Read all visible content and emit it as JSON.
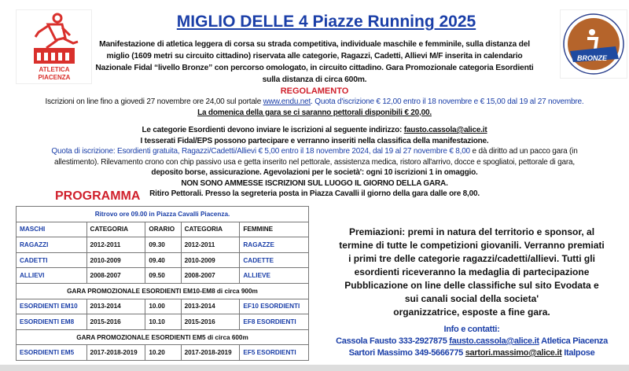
{
  "title": "MIGLIO DELLE 4 Piazze Running 2025",
  "logos": {
    "left_text": "ATLETICA PIACENZA",
    "right_text": "BRONZE"
  },
  "intro": [
    "Manifestazione di atletica leggera di corsa su strada competitiva, individuale maschile e femminile, sulla distanza del",
    "miglio (1609 metri su circuito cittadino) riservata alle categorie, Ragazzi, Cadetti, Allievi M/F inserita in calendario",
    "Nazionale Fidal “livello Bronze” con percorso omologato, in circuito cittadino. Gara Promozionale categoria Esordienti",
    "sulla distanza di circa 600m."
  ],
  "regolamento": {
    "heading": "REGOLAMENTO",
    "iscrizioni_a": "Iscrizioni on line fino a giovedi 27 novembre ore 24,00 sul portale ",
    "iscrizioni_link": "www.endu.net",
    "iscrizioni_b": ". Quota d'iscrizione € 12,00  entro il 18 novembre e € 15,00 dal 19 al 27 novembre.",
    "domenica": "La domenica della gara se ci saranno pettorali disponibili € 20,00.",
    "esordienti_a": "Le categorie Esordienti devono inviare le iscrizioni al seguente indirizzo: ",
    "esordienti_email": "fausto.cassola@alice.it",
    "tesserati": "I tesserati Fidal/EPS possono partecipare e verranno inseriti nella classifica della manifestazione.",
    "quota_a": "Quota di iscrizione: Esordienti gratuita, Ragazzi/Cadetti/Allievi € 5,00 entro il 18 novembre 2024, dal 19 al 27 novembre € 8,00",
    "quota_b": " e dà diritto ad un pacco gara (in",
    "line2": "allestimento). Rilevamento crono con chip passivo usa e getta inserito nel pettorale, assistenza medica, ristoro all'arrivo, docce e spogliatoi, pettorale di gara,",
    "line3": "deposito borse, assicurazione. Agevolazioni per le società': ogni 10 iscrizioni 1 in omaggio.",
    "line4": "NON SONO AMMESSE ISCRIZIONI SUL LUOGO IL GIORNO DELLA GARA.",
    "line5": "Ritiro Pettorali. Presso la segreteria posta in Piazza Cavalli il giorno della gara dalle ore 8,00."
  },
  "programma": {
    "heading": "PROGRAMMA",
    "ritrovo": "Ritrovo ore 09.00 in Piazza Cavalli Piacenza.",
    "headers": [
      "MASCHI",
      "CATEGORIA",
      "ORARIO",
      "CATEGORIA",
      "FEMMINE"
    ],
    "rows1": [
      [
        "RAGAZZI",
        "2012-2011",
        "09.30",
        "2012-2011",
        "RAGAZZE"
      ],
      [
        "CADETTI",
        "2010-2009",
        "09.40",
        "2010-2009",
        "CADETTE"
      ],
      [
        "ALLIEVI",
        "2008-2007",
        "09.50",
        "2008-2007",
        "ALLIEVE"
      ]
    ],
    "section2": "GARA PROMOZIONALE ESORDIENTI EM10-EM8 di circa 900m",
    "rows2": [
      [
        "ESORDIENTI EM10",
        "2013-2014",
        "10.00",
        "2013-2014",
        "EF10 ESORDIENTI"
      ],
      [
        "ESORDIENTI EM8",
        "2015-2016",
        "10.10",
        "2015-2016",
        "EF8 ESORDIENTI"
      ]
    ],
    "section3": "GARA PROMOZIONALE ESORDIENTI EM5 di circa 600m",
    "rows3": [
      [
        "ESORDIENTI EM5",
        "2017-2018-2019",
        "10.20",
        "2017-2018-2019",
        "EF5 ESORDIENTI"
      ]
    ]
  },
  "premiazioni": [
    "Premiazioni: premi in natura del territorio e sponsor, al",
    "termine di tutte le competizioni giovanili. Verranno premiati",
    "i primi tre delle categorie ragazzi/cadetti/allievi. Tutti gli",
    "esordienti riceveranno la medaglia di partecipazione",
    "Pubblicazione on line delle classifiche sul sito Evodata e",
    "sui canali social della societa'",
    "organizzatrice, esposte a fine gara."
  ],
  "info": {
    "heading": "Info e contatti:",
    "c1_name": "Cassola Fausto 333-2927875 ",
    "c1_email": "fausto.cassola@alice.it",
    "c1_org": " Atletica Piacenza",
    "c2_name": "Sartori Massimo 349-5666775 ",
    "c2_email": "sartori.massimo@alice.it",
    "c2_org": " Italpose"
  }
}
